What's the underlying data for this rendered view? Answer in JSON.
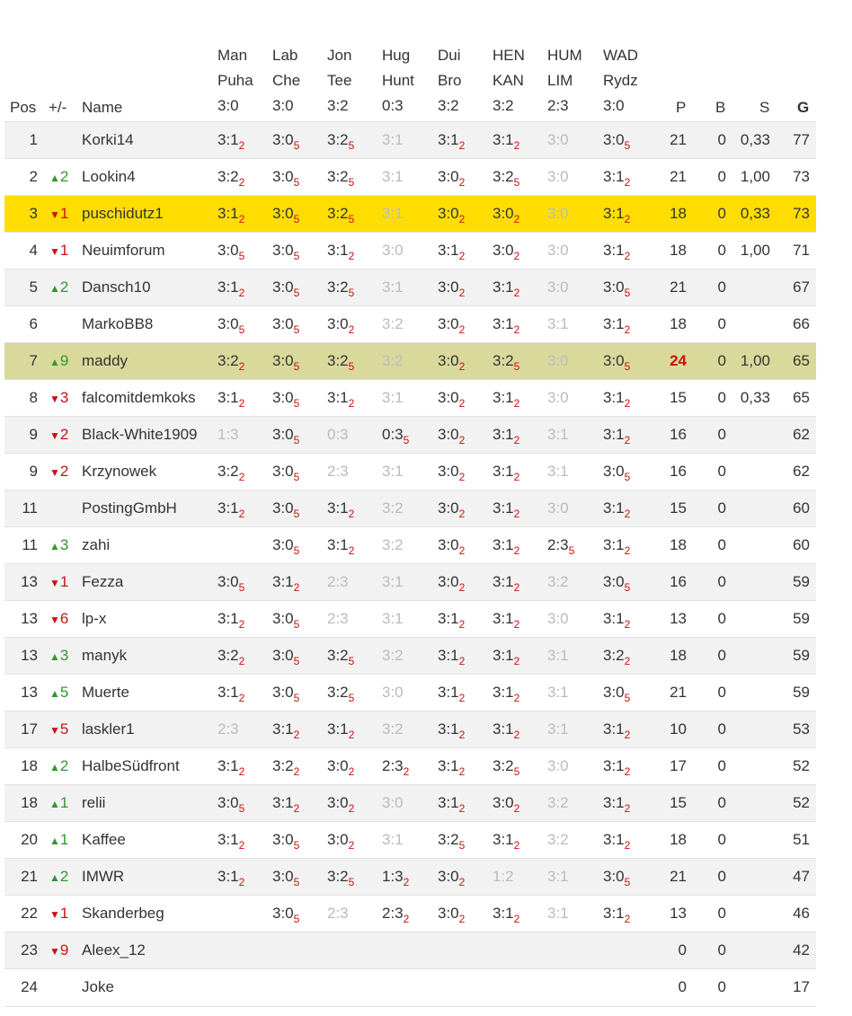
{
  "headers": {
    "pos": "Pos",
    "trend": "+/-",
    "name": "Name",
    "p": "P",
    "b": "B",
    "s": "S",
    "g": "G"
  },
  "matches": [
    {
      "home": "Man",
      "away": "Puha",
      "result": "3:0"
    },
    {
      "home": "Lab",
      "away": "Che",
      "result": "3:0"
    },
    {
      "home": "Jon",
      "away": "Tee",
      "result": "3:2"
    },
    {
      "home": "Hug",
      "away": "Hunt",
      "result": "0:3"
    },
    {
      "home": "Dui",
      "away": "Bro",
      "result": "3:2"
    },
    {
      "home": "HEN",
      "away": "KAN",
      "result": "3:2"
    },
    {
      "home": "HUM",
      "away": "LIM",
      "result": "2:3"
    },
    {
      "home": "WAD",
      "away": "Rydz",
      "result": "3:0"
    }
  ],
  "colors": {
    "highlight_user": "#ffdd00",
    "highlight_other": "#d9d99c",
    "up": "#2e9a2e",
    "down": "#cc1111"
  },
  "rows": [
    {
      "pos": "1",
      "dir": "",
      "chg": "",
      "name": "Korki14",
      "tips": [
        [
          "3:1",
          "2",
          0
        ],
        [
          "3:0",
          "5",
          0
        ],
        [
          "3:2",
          "5",
          0
        ],
        [
          "3:1",
          "",
          1
        ],
        [
          "3:1",
          "2",
          0
        ],
        [
          "3:1",
          "2",
          0
        ],
        [
          "3:0",
          "",
          1
        ],
        [
          "3:0",
          "5",
          0
        ]
      ],
      "p": "21",
      "b": "0",
      "s": "0,33",
      "g": "77"
    },
    {
      "pos": "2",
      "dir": "up",
      "chg": "2",
      "name": "Lookin4",
      "tips": [
        [
          "3:2",
          "2",
          0
        ],
        [
          "3:0",
          "5",
          0
        ],
        [
          "3:2",
          "5",
          0
        ],
        [
          "3:1",
          "",
          1
        ],
        [
          "3:0",
          "2",
          0
        ],
        [
          "3:2",
          "5",
          0
        ],
        [
          "3:0",
          "",
          1
        ],
        [
          "3:1",
          "2",
          0
        ]
      ],
      "p": "21",
      "b": "0",
      "s": "1,00",
      "g": "73"
    },
    {
      "pos": "3",
      "dir": "down",
      "chg": "1",
      "name": "puschidutz1",
      "hl": "hl1",
      "tips": [
        [
          "3:1",
          "2",
          0
        ],
        [
          "3:0",
          "5",
          0
        ],
        [
          "3:2",
          "5",
          0
        ],
        [
          "3:1",
          "",
          1
        ],
        [
          "3:0",
          "2",
          0
        ],
        [
          "3:0",
          "2",
          0
        ],
        [
          "3:0",
          "",
          1
        ],
        [
          "3:1",
          "2",
          0
        ]
      ],
      "p": "18",
      "b": "0",
      "s": "0,33",
      "g": "73"
    },
    {
      "pos": "4",
      "dir": "down",
      "chg": "1",
      "name": "Neuimforum",
      "tips": [
        [
          "3:0",
          "5",
          0
        ],
        [
          "3:0",
          "5",
          0
        ],
        [
          "3:1",
          "2",
          0
        ],
        [
          "3:0",
          "",
          1
        ],
        [
          "3:1",
          "2",
          0
        ],
        [
          "3:0",
          "2",
          0
        ],
        [
          "3:0",
          "",
          1
        ],
        [
          "3:1",
          "2",
          0
        ]
      ],
      "p": "18",
      "b": "0",
      "s": "1,00",
      "g": "71"
    },
    {
      "pos": "5",
      "dir": "up",
      "chg": "2",
      "name": "Dansch10",
      "tips": [
        [
          "3:1",
          "2",
          0
        ],
        [
          "3:0",
          "5",
          0
        ],
        [
          "3:2",
          "5",
          0
        ],
        [
          "3:1",
          "",
          1
        ],
        [
          "3:0",
          "2",
          0
        ],
        [
          "3:1",
          "2",
          0
        ],
        [
          "3:0",
          "",
          1
        ],
        [
          "3:0",
          "5",
          0
        ]
      ],
      "p": "21",
      "b": "0",
      "s": "",
      "g": "67"
    },
    {
      "pos": "6",
      "dir": "",
      "chg": "",
      "name": "MarkoBB8",
      "tips": [
        [
          "3:0",
          "5",
          0
        ],
        [
          "3:0",
          "5",
          0
        ],
        [
          "3:0",
          "2",
          0
        ],
        [
          "3:2",
          "",
          1
        ],
        [
          "3:0",
          "2",
          0
        ],
        [
          "3:1",
          "2",
          0
        ],
        [
          "3:1",
          "",
          1
        ],
        [
          "3:1",
          "2",
          0
        ]
      ],
      "p": "18",
      "b": "0",
      "s": "",
      "g": "66"
    },
    {
      "pos": "7",
      "dir": "up",
      "chg": "9",
      "name": "maddy",
      "hl": "hl2",
      "phi": true,
      "tips": [
        [
          "3:2",
          "2",
          0
        ],
        [
          "3:0",
          "5",
          0
        ],
        [
          "3:2",
          "5",
          0
        ],
        [
          "3:2",
          "",
          1
        ],
        [
          "3:0",
          "2",
          0
        ],
        [
          "3:2",
          "5",
          0
        ],
        [
          "3:0",
          "",
          1
        ],
        [
          "3:0",
          "5",
          0
        ]
      ],
      "p": "24",
      "b": "0",
      "s": "1,00",
      "g": "65"
    },
    {
      "pos": "8",
      "dir": "down",
      "chg": "3",
      "name": "falcomitdemkoks",
      "tips": [
        [
          "3:1",
          "2",
          0
        ],
        [
          "3:0",
          "5",
          0
        ],
        [
          "3:1",
          "2",
          0
        ],
        [
          "3:1",
          "",
          1
        ],
        [
          "3:0",
          "2",
          0
        ],
        [
          "3:1",
          "2",
          0
        ],
        [
          "3:0",
          "",
          1
        ],
        [
          "3:1",
          "2",
          0
        ]
      ],
      "p": "15",
      "b": "0",
      "s": "0,33",
      "g": "65"
    },
    {
      "pos": "9",
      "dir": "down",
      "chg": "2",
      "name": "Black-White1909",
      "tips": [
        [
          "1:3",
          "",
          1
        ],
        [
          "3:0",
          "5",
          0
        ],
        [
          "0:3",
          "",
          1
        ],
        [
          "0:3",
          "5",
          0
        ],
        [
          "3:0",
          "2",
          0
        ],
        [
          "3:1",
          "2",
          0
        ],
        [
          "3:1",
          "",
          1
        ],
        [
          "3:1",
          "2",
          0
        ]
      ],
      "p": "16",
      "b": "0",
      "s": "",
      "g": "62"
    },
    {
      "pos": "9",
      "dir": "down",
      "chg": "2",
      "name": "Krzynowek",
      "tips": [
        [
          "3:2",
          "2",
          0
        ],
        [
          "3:0",
          "5",
          0
        ],
        [
          "2:3",
          "",
          1
        ],
        [
          "3:1",
          "",
          1
        ],
        [
          "3:0",
          "2",
          0
        ],
        [
          "3:1",
          "2",
          0
        ],
        [
          "3:1",
          "",
          1
        ],
        [
          "3:0",
          "5",
          0
        ]
      ],
      "p": "16",
      "b": "0",
      "s": "",
      "g": "62"
    },
    {
      "pos": "11",
      "dir": "",
      "chg": "",
      "name": "PostingGmbH",
      "tips": [
        [
          "3:1",
          "2",
          0
        ],
        [
          "3:0",
          "5",
          0
        ],
        [
          "3:1",
          "2",
          0
        ],
        [
          "3:2",
          "",
          1
        ],
        [
          "3:0",
          "2",
          0
        ],
        [
          "3:1",
          "2",
          0
        ],
        [
          "3:0",
          "",
          1
        ],
        [
          "3:1",
          "2",
          0
        ]
      ],
      "p": "15",
      "b": "0",
      "s": "",
      "g": "60"
    },
    {
      "pos": "11",
      "dir": "up",
      "chg": "3",
      "name": "zahi",
      "tips": [
        [
          "",
          "",
          0
        ],
        [
          "3:0",
          "5",
          0
        ],
        [
          "3:1",
          "2",
          0
        ],
        [
          "3:2",
          "",
          1
        ],
        [
          "3:0",
          "2",
          0
        ],
        [
          "3:1",
          "2",
          0
        ],
        [
          "2:3",
          "5",
          0
        ],
        [
          "3:1",
          "2",
          0
        ]
      ],
      "p": "18",
      "b": "0",
      "s": "",
      "g": "60"
    },
    {
      "pos": "13",
      "dir": "down",
      "chg": "1",
      "name": "Fezza",
      "tips": [
        [
          "3:0",
          "5",
          0
        ],
        [
          "3:1",
          "2",
          0
        ],
        [
          "2:3",
          "",
          1
        ],
        [
          "3:1",
          "",
          1
        ],
        [
          "3:0",
          "2",
          0
        ],
        [
          "3:1",
          "2",
          0
        ],
        [
          "3:2",
          "",
          1
        ],
        [
          "3:0",
          "5",
          0
        ]
      ],
      "p": "16",
      "b": "0",
      "s": "",
      "g": "59"
    },
    {
      "pos": "13",
      "dir": "down",
      "chg": "6",
      "name": "lp-x",
      "tips": [
        [
          "3:1",
          "2",
          0
        ],
        [
          "3:0",
          "5",
          0
        ],
        [
          "2:3",
          "",
          1
        ],
        [
          "3:1",
          "",
          1
        ],
        [
          "3:1",
          "2",
          0
        ],
        [
          "3:1",
          "2",
          0
        ],
        [
          "3:0",
          "",
          1
        ],
        [
          "3:1",
          "2",
          0
        ]
      ],
      "p": "13",
      "b": "0",
      "s": "",
      "g": "59"
    },
    {
      "pos": "13",
      "dir": "up",
      "chg": "3",
      "name": "manyk",
      "tips": [
        [
          "3:2",
          "2",
          0
        ],
        [
          "3:0",
          "5",
          0
        ],
        [
          "3:2",
          "5",
          0
        ],
        [
          "3:2",
          "",
          1
        ],
        [
          "3:1",
          "2",
          0
        ],
        [
          "3:1",
          "2",
          0
        ],
        [
          "3:1",
          "",
          1
        ],
        [
          "3:2",
          "2",
          0
        ]
      ],
      "p": "18",
      "b": "0",
      "s": "",
      "g": "59"
    },
    {
      "pos": "13",
      "dir": "up",
      "chg": "5",
      "name": "Muerte",
      "tips": [
        [
          "3:1",
          "2",
          0
        ],
        [
          "3:0",
          "5",
          0
        ],
        [
          "3:2",
          "5",
          0
        ],
        [
          "3:0",
          "",
          1
        ],
        [
          "3:1",
          "2",
          0
        ],
        [
          "3:1",
          "2",
          0
        ],
        [
          "3:1",
          "",
          1
        ],
        [
          "3:0",
          "5",
          0
        ]
      ],
      "p": "21",
      "b": "0",
      "s": "",
      "g": "59"
    },
    {
      "pos": "17",
      "dir": "down",
      "chg": "5",
      "name": "laskler1",
      "tips": [
        [
          "2:3",
          "",
          1
        ],
        [
          "3:1",
          "2",
          0
        ],
        [
          "3:1",
          "2",
          0
        ],
        [
          "3:2",
          "",
          1
        ],
        [
          "3:1",
          "2",
          0
        ],
        [
          "3:1",
          "2",
          0
        ],
        [
          "3:1",
          "",
          1
        ],
        [
          "3:1",
          "2",
          0
        ]
      ],
      "p": "10",
      "b": "0",
      "s": "",
      "g": "53"
    },
    {
      "pos": "18",
      "dir": "up",
      "chg": "2",
      "name": "HalbeSüdfront",
      "tips": [
        [
          "3:1",
          "2",
          0
        ],
        [
          "3:2",
          "2",
          0
        ],
        [
          "3:0",
          "2",
          0
        ],
        [
          "2:3",
          "2",
          0
        ],
        [
          "3:1",
          "2",
          0
        ],
        [
          "3:2",
          "5",
          0
        ],
        [
          "3:0",
          "",
          1
        ],
        [
          "3:1",
          "2",
          0
        ]
      ],
      "p": "17",
      "b": "0",
      "s": "",
      "g": "52"
    },
    {
      "pos": "18",
      "dir": "up",
      "chg": "1",
      "name": "relii",
      "tips": [
        [
          "3:0",
          "5",
          0
        ],
        [
          "3:1",
          "2",
          0
        ],
        [
          "3:0",
          "2",
          0
        ],
        [
          "3:0",
          "",
          1
        ],
        [
          "3:1",
          "2",
          0
        ],
        [
          "3:0",
          "2",
          0
        ],
        [
          "3:2",
          "",
          1
        ],
        [
          "3:1",
          "2",
          0
        ]
      ],
      "p": "15",
      "b": "0",
      "s": "",
      "g": "52"
    },
    {
      "pos": "20",
      "dir": "up",
      "chg": "1",
      "name": "Kaffee",
      "tips": [
        [
          "3:1",
          "2",
          0
        ],
        [
          "3:0",
          "5",
          0
        ],
        [
          "3:0",
          "2",
          0
        ],
        [
          "3:1",
          "",
          1
        ],
        [
          "3:2",
          "5",
          0
        ],
        [
          "3:1",
          "2",
          0
        ],
        [
          "3:2",
          "",
          1
        ],
        [
          "3:1",
          "2",
          0
        ]
      ],
      "p": "18",
      "b": "0",
      "s": "",
      "g": "51"
    },
    {
      "pos": "21",
      "dir": "up",
      "chg": "2",
      "name": "IMWR",
      "tips": [
        [
          "3:1",
          "2",
          0
        ],
        [
          "3:0",
          "5",
          0
        ],
        [
          "3:2",
          "5",
          0
        ],
        [
          "1:3",
          "2",
          0
        ],
        [
          "3:0",
          "2",
          0
        ],
        [
          "1:2",
          "",
          1
        ],
        [
          "3:1",
          "",
          1
        ],
        [
          "3:0",
          "5",
          0
        ]
      ],
      "p": "21",
      "b": "0",
      "s": "",
      "g": "47"
    },
    {
      "pos": "22",
      "dir": "down",
      "chg": "1",
      "name": "Skanderbeg",
      "tips": [
        [
          "",
          "",
          0
        ],
        [
          "3:0",
          "5",
          0
        ],
        [
          "2:3",
          "",
          1
        ],
        [
          "2:3",
          "2",
          0
        ],
        [
          "3:0",
          "2",
          0
        ],
        [
          "3:1",
          "2",
          0
        ],
        [
          "3:1",
          "",
          1
        ],
        [
          "3:1",
          "2",
          0
        ]
      ],
      "p": "13",
      "b": "0",
      "s": "",
      "g": "46"
    },
    {
      "pos": "23",
      "dir": "down",
      "chg": "9",
      "name": "Aleex_12",
      "tips": [
        [
          "",
          "",
          0
        ],
        [
          "",
          "",
          0
        ],
        [
          "",
          "",
          0
        ],
        [
          "",
          "",
          0
        ],
        [
          "",
          "",
          0
        ],
        [
          "",
          "",
          0
        ],
        [
          "",
          "",
          0
        ],
        [
          "",
          "",
          0
        ]
      ],
      "p": "0",
      "b": "0",
      "s": "",
      "g": "42"
    },
    {
      "pos": "24",
      "dir": "",
      "chg": "",
      "name": "Joke",
      "tips": [
        [
          "",
          "",
          0
        ],
        [
          "",
          "",
          0
        ],
        [
          "",
          "",
          0
        ],
        [
          "",
          "",
          0
        ],
        [
          "",
          "",
          0
        ],
        [
          "",
          "",
          0
        ],
        [
          "",
          "",
          0
        ],
        [
          "",
          "",
          0
        ]
      ],
      "p": "0",
      "b": "0",
      "s": "",
      "g": "17"
    }
  ]
}
